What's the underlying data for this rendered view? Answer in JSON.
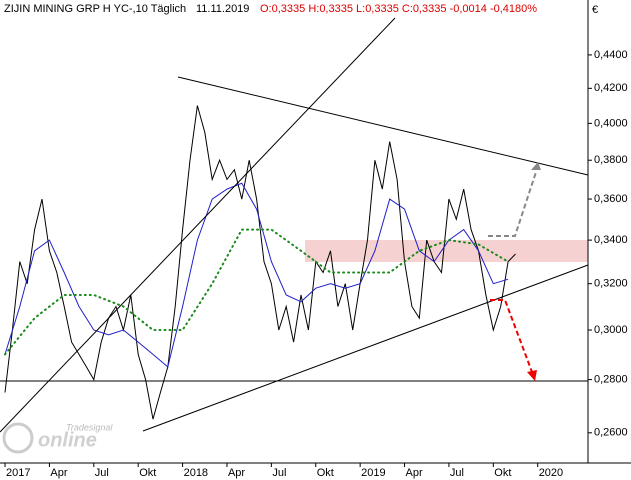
{
  "chart_data": {
    "type": "line",
    "title": "ZIJIN MINING GRP H YC-,10 Täglich",
    "subtitle": "11.11.2019",
    "quote": "O:0,3335 H:0,3335 L:0,3335 C:0,3335 -0,0014 -0,4180%",
    "y_label": "€",
    "watermark_brand": "Tradesignal",
    "watermark": "online",
    "log_y": true,
    "ylim": [
      0.2493,
      0.4632
    ],
    "yticks": [
      {
        "value": 0.26,
        "label": "0,2600"
      },
      {
        "value": 0.28,
        "label": "0,2800"
      },
      {
        "value": 0.3,
        "label": "0,3000"
      },
      {
        "value": 0.32,
        "label": "0,3200"
      },
      {
        "value": 0.34,
        "label": "0,3400"
      },
      {
        "value": 0.36,
        "label": "0,3600"
      },
      {
        "value": 0.38,
        "label": "0,3800"
      },
      {
        "value": 0.4,
        "label": "0,4000"
      },
      {
        "value": 0.42,
        "label": "0,4200"
      },
      {
        "value": 0.44,
        "label": "0,4400"
      }
    ],
    "xlim": [
      -0.34,
      39.4
    ],
    "xticks": [
      {
        "value": 0,
        "label": "2017"
      },
      {
        "value": 3,
        "label": "Apr"
      },
      {
        "value": 6,
        "label": "Jul"
      },
      {
        "value": 9,
        "label": "Okt"
      },
      {
        "value": 12,
        "label": "2018"
      },
      {
        "value": 15,
        "label": "Apr"
      },
      {
        "value": 18,
        "label": "Jul"
      },
      {
        "value": 21,
        "label": "Okt"
      },
      {
        "value": 24,
        "label": "2019"
      },
      {
        "value": 27,
        "label": "Apr"
      },
      {
        "value": 30,
        "label": "Jul"
      },
      {
        "value": 33,
        "label": "Okt"
      },
      {
        "value": 36,
        "label": "2020"
      }
    ],
    "series": [
      {
        "color": "#000000",
        "style": "solid",
        "x": [
          0,
          0.5,
          1,
          1.5,
          2,
          2.5,
          3,
          3.5,
          4,
          4.5,
          5,
          5.5,
          6,
          6.5,
          7,
          7.5,
          8,
          8.5,
          9,
          9.5,
          10,
          10.5,
          11,
          11.5,
          12,
          12.5,
          13,
          13.5,
          14,
          14.5,
          15,
          15.5,
          16,
          16.5,
          17,
          17.5,
          18,
          18.5,
          19,
          19.5,
          20,
          20.5,
          21,
          21.5,
          22,
          22.5,
          23,
          23.5,
          24,
          24.5,
          25,
          25.5,
          26,
          26.5,
          27,
          27.5,
          28,
          28.5,
          29,
          29.5,
          30,
          30.5,
          31,
          31.5,
          32,
          32.5,
          33,
          33.5,
          34,
          34.5
        ],
        "values": [
          0.275,
          0.3,
          0.33,
          0.32,
          0.345,
          0.36,
          0.335,
          0.325,
          0.31,
          0.295,
          0.29,
          0.285,
          0.28,
          0.295,
          0.305,
          0.31,
          0.3,
          0.315,
          0.29,
          0.28,
          0.265,
          0.275,
          0.285,
          0.31,
          0.345,
          0.38,
          0.41,
          0.395,
          0.37,
          0.38,
          0.37,
          0.375,
          0.36,
          0.38,
          0.36,
          0.33,
          0.32,
          0.3,
          0.31,
          0.295,
          0.315,
          0.3,
          0.33,
          0.325,
          0.335,
          0.31,
          0.32,
          0.3,
          0.32,
          0.34,
          0.38,
          0.365,
          0.39,
          0.37,
          0.33,
          0.31,
          0.305,
          0.34,
          0.33,
          0.325,
          0.36,
          0.35,
          0.365,
          0.345,
          0.335,
          0.315,
          0.3,
          0.31,
          0.33,
          0.3335
        ]
      },
      {
        "color": "#1f1fc8",
        "style": "solid",
        "x": [
          0,
          1,
          2,
          3,
          4,
          5,
          6,
          7,
          8,
          9,
          10,
          11,
          12,
          13,
          14,
          15,
          16,
          17,
          18,
          19,
          20,
          21,
          22,
          23,
          24,
          25,
          26,
          27,
          28,
          29,
          30,
          31,
          32,
          33,
          34
        ],
        "values": [
          0.29,
          0.31,
          0.335,
          0.34,
          0.325,
          0.31,
          0.3,
          0.298,
          0.3,
          0.295,
          0.29,
          0.285,
          0.31,
          0.34,
          0.36,
          0.365,
          0.368,
          0.355,
          0.33,
          0.315,
          0.312,
          0.318,
          0.32,
          0.318,
          0.32,
          0.335,
          0.36,
          0.355,
          0.335,
          0.33,
          0.34,
          0.345,
          0.335,
          0.32,
          0.322
        ]
      },
      {
        "color": "#1a8a1a",
        "style": "dotted",
        "x": [
          0,
          2,
          4,
          6,
          8,
          10,
          12,
          14,
          16,
          18,
          20,
          22,
          24,
          26,
          28,
          30,
          32,
          34
        ],
        "values": [
          0.29,
          0.305,
          0.315,
          0.315,
          0.31,
          0.3,
          0.3,
          0.32,
          0.345,
          0.345,
          0.335,
          0.325,
          0.325,
          0.325,
          0.335,
          0.34,
          0.338,
          0.33
        ]
      }
    ]
  }
}
